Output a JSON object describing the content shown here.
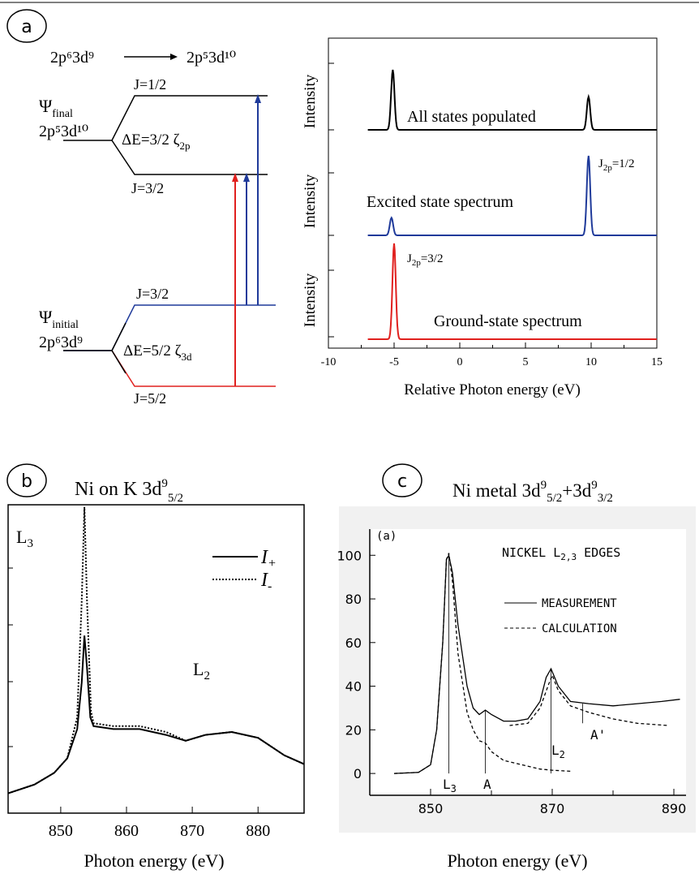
{
  "panel_a": {
    "label": "a",
    "transition": {
      "initial": "2p⁶3d⁹",
      "final": "2p⁵3d¹⁰"
    },
    "final_state": {
      "psi": "Ψ",
      "psi_sub": "final",
      "config": "2p⁵3d¹⁰",
      "delta_e": "ΔE=3/2 ζ",
      "delta_sub": "2p",
      "upper_level": "J=1/2",
      "lower_level": "J=3/2"
    },
    "initial_state": {
      "psi": "Ψ",
      "psi_sub": "initial",
      "config": "2p⁶3d⁹",
      "delta_e": "ΔE=5/2 ζ",
      "delta_sub": "3d",
      "upper_level": "J=3/2",
      "lower_level": "J=5/2"
    },
    "colors": {
      "blue": "#1f3a9a",
      "red": "#e0201e",
      "black": "#000000"
    }
  },
  "chart_data": [
    {
      "type": "line",
      "panel": "a",
      "xlabel": "Relative Photon energy (eV)",
      "ylabel": "Intensity",
      "xlim": [
        -10,
        15
      ],
      "x_ticks": [
        "-10",
        "-5",
        "0",
        "5",
        "10",
        "15"
      ],
      "series": [
        {
          "trace": "top",
          "color": "#000000",
          "annotation": "All states populated",
          "peaks": [
            {
              "x": -5.1,
              "height": 1.0
            },
            {
              "x": 9.8,
              "height": 0.55
            }
          ]
        },
        {
          "trace": "middle",
          "color": "#1f3a9a",
          "annotation": "Excited state spectrum",
          "peak_label_main": "J",
          "peak_label_sub": "2p",
          "peak_label_tail": "=1/2",
          "peaks": [
            {
              "x": -5.2,
              "height": 0.22
            },
            {
              "x": 9.8,
              "height": 1.0
            }
          ]
        },
        {
          "trace": "bottom",
          "color": "#e0201e",
          "annotation": "Ground-state spectrum",
          "peak_label_main": "J",
          "peak_label_sub": "2p",
          "peak_label_tail": "=3/2",
          "peaks": [
            {
              "x": -5.0,
              "height": 1.0
            }
          ]
        }
      ]
    },
    {
      "type": "line",
      "panel": "b",
      "title_main": "Ni on K 3d",
      "title_sup": "9",
      "title_sub": "5/2",
      "xlabel": "Photon energy (eV)",
      "xlim": [
        842,
        887
      ],
      "x_ticks": [
        "850",
        "860",
        "870",
        "880"
      ],
      "legend": [
        "I+",
        "I-"
      ],
      "annotations": [
        "L3",
        "L2"
      ],
      "series": [
        {
          "name": "I+",
          "style": "solid",
          "points": [
            [
              842,
              0.04
            ],
            [
              846,
              0.07
            ],
            [
              849,
              0.11
            ],
            [
              851,
              0.16
            ],
            [
              852.5,
              0.26
            ],
            [
              853.2,
              0.42
            ],
            [
              853.6,
              0.58
            ],
            [
              854,
              0.47
            ],
            [
              854.5,
              0.3
            ],
            [
              855,
              0.27
            ],
            [
              858,
              0.26
            ],
            [
              862,
              0.26
            ],
            [
              866,
              0.24
            ],
            [
              869,
              0.22
            ],
            [
              872,
              0.24
            ],
            [
              876,
              0.25
            ],
            [
              880,
              0.23
            ],
            [
              884,
              0.17
            ],
            [
              887,
              0.14
            ]
          ]
        },
        {
          "name": "I-",
          "style": "dotted",
          "points": [
            [
              842,
              0.04
            ],
            [
              846,
              0.07
            ],
            [
              849,
              0.11
            ],
            [
              851,
              0.16
            ],
            [
              852.5,
              0.3
            ],
            [
              853.2,
              0.7
            ],
            [
              853.6,
              1.02
            ],
            [
              854,
              0.7
            ],
            [
              854.6,
              0.32
            ],
            [
              855,
              0.28
            ],
            [
              858,
              0.27
            ],
            [
              862,
              0.27
            ],
            [
              866,
              0.25
            ],
            [
              869,
              0.22
            ],
            [
              872,
              0.24
            ],
            [
              876,
              0.25
            ],
            [
              880,
              0.23
            ],
            [
              884,
              0.17
            ],
            [
              887,
              0.14
            ]
          ]
        }
      ]
    },
    {
      "type": "line",
      "panel": "c",
      "title_main": "Ni metal 3d",
      "title_mid": "+3d",
      "title_sup": "9",
      "title_sub1": "5/2",
      "title_sub2": "3/2",
      "inset_title": "(a)",
      "chart_heading": "NICKEL L2,3 EDGES",
      "xlabel": "Photon energy (eV)",
      "xlim": [
        840,
        892
      ],
      "ylim": [
        -10,
        112
      ],
      "x_ticks": [
        "850",
        "870",
        "890"
      ],
      "y_ticks": [
        "0",
        "20",
        "40",
        "60",
        "80",
        "100"
      ],
      "legend": [
        "MEASUREMENT",
        "CALCULATION"
      ],
      "annotations": [
        "L3",
        "A",
        "L2",
        "A'"
      ],
      "series": [
        {
          "name": "MEASUREMENT",
          "style": "solid",
          "points": [
            [
              844,
              0
            ],
            [
              848,
              0.5
            ],
            [
              850,
              4
            ],
            [
              851,
              20
            ],
            [
              852,
              60
            ],
            [
              852.6,
              98
            ],
            [
              853,
              100
            ],
            [
              853.6,
              92
            ],
            [
              854.5,
              68
            ],
            [
              856,
              40
            ],
            [
              857,
              30
            ],
            [
              858,
              27
            ],
            [
              859,
              29
            ],
            [
              860,
              27
            ],
            [
              862,
              24
            ],
            [
              864,
              24
            ],
            [
              866,
              25
            ],
            [
              868,
              33
            ],
            [
              869,
              44
            ],
            [
              869.8,
              48
            ],
            [
              871,
              40
            ],
            [
              873,
              33
            ],
            [
              876,
              32
            ],
            [
              880,
              31
            ],
            [
              884,
              32
            ],
            [
              888,
              33
            ],
            [
              891,
              34
            ]
          ]
        },
        {
          "name": "CALCULATION",
          "style": "dashed",
          "points": [
            [
              844,
              0
            ],
            [
              848,
              0.5
            ],
            [
              850,
              4
            ],
            [
              851,
              20
            ],
            [
              852,
              60
            ],
            [
              852.6,
              98
            ],
            [
              853,
              101
            ],
            [
              853.6,
              88
            ],
            [
              854.5,
              55
            ],
            [
              856,
              28
            ],
            [
              857,
              20
            ],
            [
              858,
              15
            ],
            [
              859,
              14
            ],
            [
              860,
              10
            ],
            [
              862,
              6
            ],
            [
              865,
              4
            ],
            [
              868,
              2
            ],
            [
              870,
              1.5
            ],
            [
              873,
              1
            ]
          ]
        },
        {
          "name": "CALCULATION-L2",
          "style": "dashed",
          "points": [
            [
              863,
              22
            ],
            [
              866,
              23
            ],
            [
              868,
              30
            ],
            [
              869.3,
              40
            ],
            [
              870,
              45
            ],
            [
              871,
              38
            ],
            [
              873,
              31
            ],
            [
              876,
              28
            ],
            [
              880,
              25
            ],
            [
              884,
              23
            ],
            [
              889,
              22
            ]
          ]
        }
      ]
    }
  ],
  "panel_b": {
    "label": "b"
  },
  "panel_c": {
    "label": "c"
  }
}
